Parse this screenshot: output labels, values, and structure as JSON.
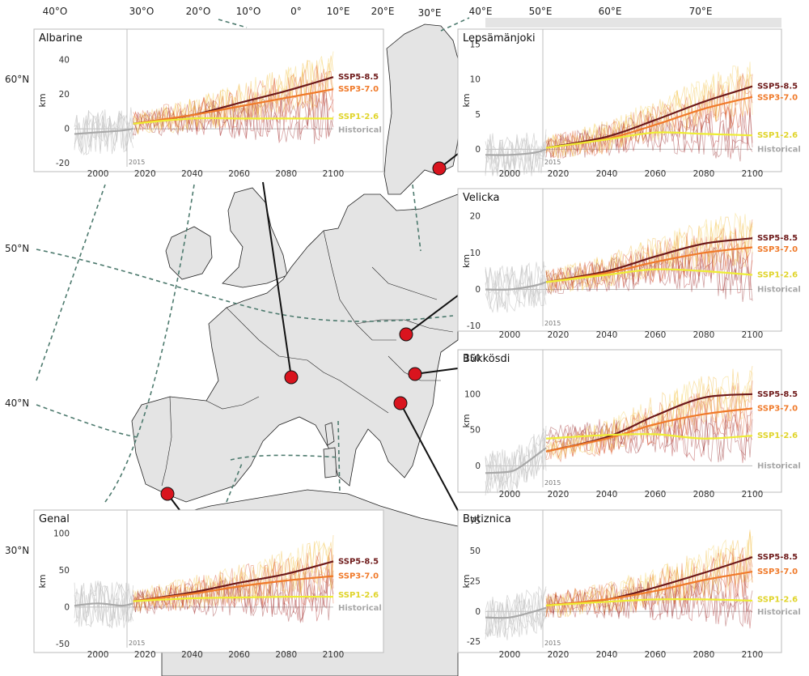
{
  "map": {
    "graticule_lon": [
      "40°O",
      "30°O",
      "20°O",
      "10°O",
      "0°",
      "10°E",
      "20°E",
      "30°E",
      "40°E",
      "50°E",
      "60°E",
      "70°E"
    ],
    "graticule_lat": [
      "60°N",
      "50°N",
      "40°N",
      "30°N"
    ],
    "colors": {
      "land": "#e4e4e4",
      "ocean": "#ffffff",
      "border": "#222222",
      "graticule": "#4d7a6e",
      "marker": "#d9141e",
      "leader": "#111111"
    }
  },
  "chart_data": [
    {
      "type": "line",
      "title": "Albarine",
      "ylabel": "km",
      "xlim": [
        1990,
        2100
      ],
      "ylim": [
        -22,
        55
      ],
      "yticks": [
        -20,
        0,
        20,
        40
      ],
      "xticks": [
        2000,
        2020,
        2040,
        2060,
        2080,
        2100
      ],
      "start_year_label": "2015",
      "series": [
        {
          "name": "SSP5-8.5",
          "color": "#6e1a1a",
          "x": [
            2015,
            2040,
            2060,
            2080,
            2100
          ],
          "values": [
            3,
            8,
            15,
            22,
            30
          ]
        },
        {
          "name": "SSP3-7.0",
          "color": "#f07a2a",
          "x": [
            2015,
            2040,
            2060,
            2080,
            2100
          ],
          "values": [
            3,
            8,
            13,
            18,
            23
          ]
        },
        {
          "name": "SSP1-2.6",
          "color": "#eeee35",
          "x": [
            2015,
            2040,
            2060,
            2080,
            2100
          ],
          "values": [
            3,
            6,
            6,
            6,
            6
          ]
        },
        {
          "name": "Historical",
          "color": "#a8a8a8",
          "x": [
            1990,
            2000,
            2010,
            2015
          ],
          "values": [
            -3,
            -2,
            -1,
            0
          ]
        }
      ]
    },
    {
      "type": "line",
      "title": "Lepsämänjoki",
      "ylabel": "km",
      "xlim": [
        1990,
        2100
      ],
      "ylim": [
        -2.5,
        16.5
      ],
      "yticks": [
        0,
        5,
        10,
        15
      ],
      "xticks": [
        2000,
        2020,
        2040,
        2060,
        2080,
        2100
      ],
      "start_year_label": "2015",
      "series": [
        {
          "name": "SSP5-8.5",
          "color": "#6e1a1a",
          "x": [
            2015,
            2040,
            2060,
            2080,
            2100
          ],
          "values": [
            0.2,
            1.8,
            4.2,
            6.8,
            9
          ]
        },
        {
          "name": "SSP3-7.0",
          "color": "#f07a2a",
          "x": [
            2015,
            2040,
            2060,
            2080,
            2100
          ],
          "values": [
            0.2,
            1.5,
            3.5,
            5.8,
            7.5
          ]
        },
        {
          "name": "SSP1-2.6",
          "color": "#eeee35",
          "x": [
            2015,
            2040,
            2060,
            2080,
            2100
          ],
          "values": [
            0.2,
            1.4,
            2.4,
            2.2,
            2
          ]
        },
        {
          "name": "Historical",
          "color": "#a8a8a8",
          "x": [
            1990,
            2000,
            2010,
            2015
          ],
          "values": [
            -0.8,
            -0.8,
            -0.5,
            0
          ]
        }
      ]
    },
    {
      "type": "line",
      "title": "Velicka",
      "ylabel": "km",
      "xlim": [
        1990,
        2100
      ],
      "ylim": [
        -10.5,
        26
      ],
      "yticks": [
        -10,
        0,
        10,
        20
      ],
      "xticks": [
        2000,
        2020,
        2040,
        2060,
        2080,
        2100
      ],
      "start_year_label": "2015",
      "series": [
        {
          "name": "SSP5-8.5",
          "color": "#6e1a1a",
          "x": [
            2015,
            2040,
            2060,
            2080,
            2100
          ],
          "values": [
            2,
            5,
            9,
            12.5,
            14
          ]
        },
        {
          "name": "SSP3-7.0",
          "color": "#f07a2a",
          "x": [
            2015,
            2040,
            2060,
            2080,
            2100
          ],
          "values": [
            2,
            4.5,
            7.5,
            10,
            11.5
          ]
        },
        {
          "name": "SSP1-2.6",
          "color": "#eeee35",
          "x": [
            2015,
            2040,
            2060,
            2080,
            2100
          ],
          "values": [
            2,
            4,
            5.5,
            5,
            4
          ]
        },
        {
          "name": "Historical",
          "color": "#a8a8a8",
          "x": [
            1990,
            2000,
            2010,
            2015
          ],
          "values": [
            0,
            0,
            1,
            2
          ]
        }
      ]
    },
    {
      "type": "line",
      "title": "Bükkösdi",
      "ylabel": "km",
      "xlim": [
        1990,
        2100
      ],
      "ylim": [
        -30,
        155
      ],
      "yticks": [
        0,
        50,
        100,
        150
      ],
      "xticks": [
        2000,
        2020,
        2040,
        2060,
        2080,
        2100
      ],
      "start_year_label": "2015",
      "series": [
        {
          "name": "SSP5-8.5",
          "color": "#6e1a1a",
          "x": [
            2015,
            2040,
            2060,
            2080,
            2100
          ],
          "values": [
            20,
            40,
            70,
            95,
            100
          ]
        },
        {
          "name": "SSP3-7.0",
          "color": "#f07a2a",
          "x": [
            2015,
            2040,
            2060,
            2080,
            2100
          ],
          "values": [
            20,
            38,
            58,
            72,
            80
          ]
        },
        {
          "name": "SSP1-2.6",
          "color": "#eeee35",
          "x": [
            2015,
            2040,
            2060,
            2080,
            2100
          ],
          "values": [
            38,
            43,
            44,
            38,
            42
          ]
        },
        {
          "name": "Historical",
          "color": "#a8a8a8",
          "x": [
            1990,
            2000,
            2005,
            2015
          ],
          "values": [
            -10,
            -8,
            0,
            25
          ]
        }
      ]
    },
    {
      "type": "line",
      "title": "Genal",
      "ylabel": "km",
      "xlim": [
        1990,
        2100
      ],
      "ylim": [
        -55,
        125
      ],
      "yticks": [
        -50,
        0,
        50,
        100
      ],
      "xticks": [
        2000,
        2020,
        2040,
        2060,
        2080,
        2100
      ],
      "start_year_label": "2015",
      "series": [
        {
          "name": "SSP5-8.5",
          "color": "#6e1a1a",
          "x": [
            2015,
            2040,
            2060,
            2080,
            2100
          ],
          "values": [
            8,
            20,
            33,
            45,
            62
          ]
        },
        {
          "name": "SSP3-7.0",
          "color": "#f07a2a",
          "x": [
            2015,
            2040,
            2060,
            2080,
            2100
          ],
          "values": [
            8,
            18,
            28,
            36,
            42
          ]
        },
        {
          "name": "SSP1-2.6",
          "color": "#eeee35",
          "x": [
            2015,
            2040,
            2060,
            2080,
            2100
          ],
          "values": [
            8,
            12,
            13,
            14,
            14
          ]
        },
        {
          "name": "Historical",
          "color": "#a8a8a8",
          "x": [
            1990,
            2000,
            2010,
            2015
          ],
          "values": [
            2,
            5,
            2,
            5
          ]
        }
      ]
    },
    {
      "type": "line",
      "title": "Butiznica",
      "ylabel": "km",
      "xlim": [
        1990,
        2100
      ],
      "ylim": [
        -30,
        80
      ],
      "yticks": [
        -25,
        0,
        25,
        50,
        75
      ],
      "xticks": [
        2000,
        2020,
        2040,
        2060,
        2080,
        2100
      ],
      "start_year_label": "2015",
      "series": [
        {
          "name": "SSP5-8.5",
          "color": "#6e1a1a",
          "x": [
            2015,
            2040,
            2060,
            2080,
            2100
          ],
          "values": [
            5,
            10,
            20,
            32,
            45
          ]
        },
        {
          "name": "SSP3-7.0",
          "color": "#f07a2a",
          "x": [
            2015,
            2040,
            2060,
            2080,
            2100
          ],
          "values": [
            5,
            10,
            17,
            26,
            33
          ]
        },
        {
          "name": "SSP1-2.6",
          "color": "#eeee35",
          "x": [
            2015,
            2040,
            2060,
            2080,
            2100
          ],
          "values": [
            5,
            8,
            10,
            10,
            9
          ]
        },
        {
          "name": "Historical",
          "color": "#a8a8a8",
          "x": [
            1990,
            2000,
            2010,
            2015
          ],
          "values": [
            -5,
            -5,
            0,
            3
          ]
        }
      ]
    }
  ]
}
